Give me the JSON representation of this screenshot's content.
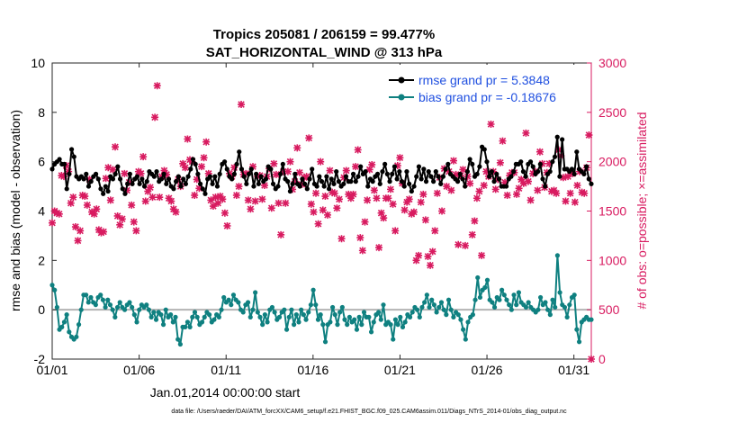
{
  "chart_data": {
    "type": "line",
    "title": "Tropics 205081 / 206159 = 99.477%",
    "subtitle": "SAT_HORIZONTAL_WIND @ 313 hPa",
    "xlabel": "Jan.01,2014 00:00:00 start",
    "ylabel": "rmse and bias (model - observation)",
    "y2label": "# of obs: o=possible; ×=assimilated",
    "xlim": [
      0,
      31
    ],
    "ylim": [
      -2,
      10
    ],
    "y2lim": [
      0,
      3000
    ],
    "xticks": [
      0,
      5,
      10,
      15,
      20,
      25,
      30
    ],
    "xtick_labels": [
      "01/01",
      "01/06",
      "01/11",
      "01/16",
      "01/21",
      "01/26",
      "01/31"
    ],
    "yticks": [
      "-2",
      "0",
      "2",
      "4",
      "6",
      "8",
      "10"
    ],
    "y2ticks": [
      "0",
      "500",
      "1000",
      "1500",
      "2000",
      "2500",
      "3000"
    ],
    "colors": {
      "rmse": "#000000",
      "bias": "#0f8080",
      "obs": "#d81b60",
      "zero": "#b3b3b3",
      "legend_text": "#1f4fe0"
    },
    "series": [
      {
        "name": "rmse grand pr = 5.3848",
        "axis": "left",
        "values": [
          5.7,
          5.9,
          6.0,
          6.1,
          5.9,
          5.9,
          4.9,
          5.5,
          6.5,
          6.2,
          5.4,
          5.3,
          5.4,
          5.3,
          5.5,
          5.0,
          5.2,
          5.4,
          5.5,
          5.3,
          4.9,
          4.7,
          5.0,
          4.8,
          5.4,
          5.3,
          5.5,
          5.8,
          5.3,
          4.9,
          4.7,
          5.1,
          5.5,
          5.1,
          5.3,
          5.4,
          5.1,
          5.3,
          5.0,
          5.2,
          5.6,
          5.5,
          5.4,
          5.6,
          5.2,
          5.3,
          5.5,
          5.1,
          5.3,
          5.0,
          4.9,
          5.2,
          5.4,
          5.0,
          5.3,
          5.1,
          5.4,
          5.7,
          6.1,
          5.9,
          5.5,
          5.1,
          4.9,
          4.7,
          5.3,
          5.4,
          5.1,
          5.4,
          5.0,
          5.5,
          5.9,
          6.0,
          5.7,
          5.4,
          5.3,
          5.5,
          5.9,
          6.4,
          5.7,
          5.4,
          5.1,
          5.5,
          5.7,
          5.0,
          5.5,
          5.1,
          5.4,
          5.2,
          5.3,
          5.8,
          5.7,
          5.1,
          4.9,
          5.0,
          5.5,
          5.9,
          5.3,
          5.2,
          4.8,
          5.1,
          5.5,
          5.1,
          5.0,
          5.3,
          5.1,
          4.9,
          5.3,
          5.7,
          5.1,
          5.0,
          5.4,
          5.2,
          5.0,
          5.4,
          4.9,
          5.3,
          5.1,
          5.6,
          5.2,
          5.0,
          5.1,
          5.4,
          5.2,
          5.2,
          5.5,
          5.2,
          5.4,
          5.8,
          5.5,
          5.6,
          5.0,
          5.3,
          5.2,
          5.4,
          5.5,
          5.1,
          5.6,
          5.9,
          5.5,
          5.2,
          5.5,
          5.8,
          5.3,
          5.6,
          5.2,
          5.0,
          5.6,
          5.1,
          4.8,
          5.0,
          5.4,
          5.8,
          5.3,
          5.7,
          5.2,
          5.6,
          5.4,
          5.2,
          5.6,
          5.4,
          5.1,
          5.4,
          5.7,
          5.9,
          5.5,
          5.4,
          5.3,
          5.2,
          5.5,
          5.3,
          5.0,
          5.6,
          6.1,
          5.9,
          5.4,
          5.5,
          5.8,
          6.6,
          6.5,
          6.0,
          5.4,
          5.6,
          5.2,
          5.5,
          5.3,
          5.0,
          5.0,
          5.0,
          5.3,
          5.4,
          5.6,
          5.9,
          5.9,
          6.0,
          5.6,
          5.4,
          5.9,
          6.0,
          5.8,
          5.5,
          5.6,
          5.9,
          5.3,
          5.0,
          5.5,
          5.6,
          6.0,
          6.2,
          7.0,
          5.4,
          6.9,
          5.7,
          5.7,
          5.6,
          5.7,
          5.5,
          6.4,
          5.7,
          5.6,
          5.5,
          5.8,
          5.3,
          5.1
        ]
      },
      {
        "name": "bias grand pr = -0.18676",
        "axis": "left",
        "values": [
          1.0,
          0.8,
          0.1,
          -0.8,
          -0.7,
          -0.5,
          -0.2,
          -0.9,
          -1.1,
          -1.2,
          -1.1,
          -0.6,
          0.0,
          0.6,
          0.6,
          0.3,
          0.5,
          0.3,
          0.2,
          0.5,
          0.6,
          0.4,
          0.1,
          0.4,
          0.2,
          0.0,
          -0.3,
          0.1,
          0.3,
          0.1,
          0.0,
          0.2,
          0.3,
          0.1,
          -0.2,
          -0.5,
          0.0,
          0.2,
          0.1,
          0.2,
          0.0,
          -0.3,
          -0.1,
          -0.4,
          -0.1,
          -0.2,
          -0.6,
          0.0,
          -0.3,
          -0.2,
          -0.5,
          -0.3,
          -1.2,
          -1.4,
          -0.7,
          -0.7,
          -0.5,
          -0.7,
          -0.3,
          -0.1,
          -0.3,
          -0.6,
          -0.5,
          -0.3,
          -0.1,
          -0.2,
          -0.5,
          -0.4,
          -0.2,
          -0.3,
          0.0,
          0.5,
          0.3,
          0.4,
          0.2,
          0.6,
          0.4,
          0.3,
          0.0,
          -0.1,
          0.2,
          0.3,
          -0.3,
          0.0,
          0.7,
          -0.1,
          -0.3,
          -0.6,
          -0.2,
          -0.5,
          0.0,
          0.1,
          -0.1,
          -0.4,
          -0.3,
          -0.1,
          0.0,
          -0.8,
          -0.3,
          0.0,
          -0.6,
          -0.2,
          -0.5,
          0.0,
          -0.2,
          -0.4,
          -0.1,
          0.2,
          0.8,
          0.2,
          -0.4,
          -0.2,
          -0.6,
          -1.3,
          -0.6,
          -0.5,
          0.1,
          -0.2,
          -0.6,
          -0.1,
          0.1,
          -0.4,
          -0.6,
          -0.3,
          -0.5,
          -0.4,
          -0.8,
          -0.3,
          -0.6,
          -0.1,
          -0.3,
          -0.3,
          -0.9,
          -0.5,
          -0.2,
          -0.1,
          -0.4,
          0.2,
          -0.6,
          -0.5,
          -0.6,
          -1.2,
          -0.4,
          -0.6,
          -0.3,
          -0.7,
          -0.5,
          -0.2,
          -0.3,
          -0.1,
          0.1,
          0.0,
          -0.3,
          0.1,
          0.3,
          0.6,
          0.1,
          0.4,
          0.2,
          -0.1,
          0.1,
          0.3,
          0.0,
          -0.2,
          0.4,
          0.0,
          -0.3,
          -0.1,
          -0.2,
          -0.4,
          -0.8,
          -1.2,
          -0.5,
          -0.3,
          -0.2,
          0.4,
          1.3,
          0.5,
          0.8,
          0.9,
          1.2,
          0.4,
          0.3,
          0.1,
          0.5,
          0.4,
          0.8,
          0.6,
          0.4,
          0.2,
          0.0,
          0.6,
          0.2,
          0.7,
          0.3,
          0.2,
          0.1,
          0.3,
          0.1,
          0.0,
          -0.1,
          0.0,
          0.5,
          0.2,
          0.3,
          0.0,
          -0.2,
          0.4,
          0.1,
          2.2,
          0.7,
          0.2,
          0.1,
          -0.3,
          0.2,
          0.5,
          0.6,
          -0.8,
          -1.3,
          -0.5,
          -0.4,
          -0.3,
          -0.4,
          -0.4
        ]
      },
      {
        "name": "# of obs assimilated (x)",
        "axis": "right",
        "values": [
          1380,
          1500,
          1480,
          1470,
          1860,
          1850,
          1960,
          1900,
          1580,
          1640,
          1340,
          1200,
          1300,
          1660,
          1650,
          1560,
          1820,
          1490,
          1470,
          1520,
          1310,
          1280,
          1290,
          1830,
          1940,
          1610,
          1920,
          2150,
          1450,
          1360,
          1420,
          1880,
          1710,
          1790,
          1560,
          1390,
          1300,
          1900,
          1880,
          2050,
          1600,
          1700,
          1740,
          1640,
          2450,
          2770,
          1640,
          1850,
          1910,
          1870,
          1630,
          1600,
          1520,
          1490,
          1820,
          1750,
          1980,
          1940,
          2230,
          2020,
          2000,
          1660,
          1820,
          1730,
          1950,
          2040,
          2200,
          1880,
          1610,
          1550,
          1640,
          1580,
          1650,
          1620,
          1480,
          1350,
          1880,
          1850,
          1940,
          1660,
          1750,
          2580,
          1870,
          1880,
          1610,
          1520,
          1950,
          1600,
          1850,
          1860,
          1620,
          1760,
          1850,
          1930,
          1530,
          1980,
          1870,
          1580,
          1260,
          1900,
          1580,
          1900,
          2000,
          1720,
          1800,
          2140,
          1890,
          1770,
          1840,
          1850,
          2240,
          1570,
          1490,
          1680,
          1370,
          2000,
          1510,
          1650,
          1460,
          1910,
          1690,
          1680,
          1530,
          1620,
          1220,
          1840,
          1910,
          1670,
          1630,
          1670,
          1950,
          2120,
          1230,
          1100,
          1390,
          1610,
          1920,
          1970,
          1710,
          1630,
          1130,
          1480,
          1430,
          1630,
          1630,
          1720,
          1570,
          1300,
          1960,
          2040,
          1780,
          1510,
          1590,
          1620,
          1470,
          1490,
          1000,
          1050,
          1590,
          1670,
          1410,
          1040,
          950,
          1090,
          1300,
          1680,
          1840,
          1500,
          1930,
          1750,
          1900,
          1710,
          2010,
          1870,
          1160,
          1860,
          1920,
          1150,
          1850,
          1780,
          1260,
          1400,
          1630,
          1700,
          1050,
          1760,
          1900,
          1850,
          2380,
          1900,
          1720,
          1820,
          1990,
          2210,
          1790,
          1660,
          1860,
          1890,
          1890,
          1670,
          1730,
          1820,
          1780,
          2290,
          1800,
          1610,
          1880,
          1900,
          1710,
          2100,
          1980,
          1740,
          1890,
          1980,
          1700,
          1710,
          1680,
          2120,
          2060,
          1840,
          1600,
          1850,
          1680,
          1880,
          1590,
          1760,
          1900,
          1690,
          1680,
          1940,
          2270,
          0
        ]
      }
    ],
    "legend_position": "top-right",
    "footnote": "data file: /Users/raeder/DAI/ATM_forcXX/CAM6_setup/f.e21.FHIST_BGC.f09_025.CAM6assim.011/Diags_NTrS_2014-01/obs_diag_output.nc"
  }
}
